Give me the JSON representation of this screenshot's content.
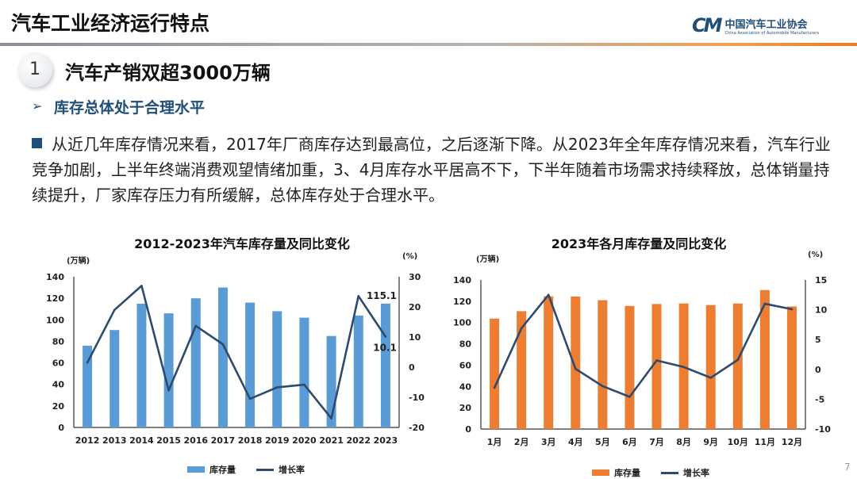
{
  "header": {
    "title": "汽车工业经济运行特点",
    "logo": {
      "mark": "CM",
      "name_cn": "中国汽车工业协会",
      "name_en": "China Association of Automobile Manufacturers"
    }
  },
  "section": {
    "number": "1",
    "title": "汽车产销双超3000万辆"
  },
  "subsection": {
    "arrow": "➢",
    "title": "库存总体处于合理水平"
  },
  "paragraph": "从近几年库存情况来看，2017年厂商库存达到最高位，之后逐渐下降。从2023年全年库存情况来看，汽车行业竞争加剧，上半年终端消费观望情绪加重，3、4月库存水平居高不下，下半年随着市场需求持续释放，总体销量持续提升，厂家库存压力有所缓解，总体库存处于合理水平。",
  "page_number": "7",
  "colors": {
    "accent": "#1f4e79",
    "bar_left": "#5b9bd5",
    "bar_right": "#ed7d31",
    "line": "#2e4a6e"
  },
  "chart_data": [
    {
      "type": "bar+line",
      "title": "2012-2023年汽车库存量及同比变化",
      "ylabel": "(万辆)",
      "y2label": "(%)",
      "ylim": [
        0,
        140
      ],
      "yticks": [
        0,
        20,
        40,
        60,
        80,
        100,
        120,
        140
      ],
      "y2lim": [
        -20,
        30
      ],
      "y2ticks": [
        -20,
        -10,
        0,
        10,
        20,
        30
      ],
      "categories": [
        "2012",
        "2013",
        "2014",
        "2015",
        "2016",
        "2017",
        "2018",
        "2019",
        "2020",
        "2021",
        "2022",
        "2023"
      ],
      "series": [
        {
          "name": "库存量",
          "type": "bar",
          "axis": "left",
          "color": "#5b9bd5",
          "values": [
            76,
            90.5,
            115,
            106,
            120,
            130,
            116,
            108,
            102,
            85,
            104,
            115.1
          ]
        },
        {
          "name": "增长率",
          "type": "line",
          "axis": "right",
          "color": "#2e4a6e",
          "values": [
            1.5,
            19,
            27,
            -7.7,
            13.7,
            7.6,
            -10.5,
            -6.7,
            -5.8,
            -17,
            23.6,
            10.1
          ]
        }
      ],
      "annotations": [
        "115.1",
        "10.1"
      ],
      "legend": "bottom",
      "grid": false
    },
    {
      "type": "bar+line",
      "title": "2023年各月库存量及同比变化",
      "ylabel": "(万辆)",
      "y2label": "(%)",
      "ylim": [
        0,
        140
      ],
      "yticks": [
        0,
        20,
        40,
        60,
        80,
        100,
        120,
        140
      ],
      "y2lim": [
        -10,
        15
      ],
      "y2ticks": [
        -10,
        -5,
        0,
        5,
        10,
        15
      ],
      "categories": [
        "1月",
        "2月",
        "3月",
        "4月",
        "5月",
        "6月",
        "7月",
        "8月",
        "9月",
        "10月",
        "11月",
        "12月"
      ],
      "series": [
        {
          "name": "库存量",
          "type": "bar",
          "axis": "left",
          "color": "#ed7d31",
          "values": [
            103.7,
            110.7,
            124.6,
            124.4,
            121,
            115.6,
            117.4,
            117.9,
            116.4,
            117.9,
            130.5,
            115.1
          ]
        },
        {
          "name": "增长率",
          "type": "line",
          "axis": "right",
          "color": "#2e4a6e",
          "values": [
            -3.1,
            6.9,
            12.5,
            0.1,
            -2.8,
            -4.6,
            1.5,
            0.4,
            -1.4,
            1.6,
            11,
            10.1
          ]
        }
      ],
      "annotations": [],
      "legend": "bottom",
      "grid": false
    }
  ]
}
